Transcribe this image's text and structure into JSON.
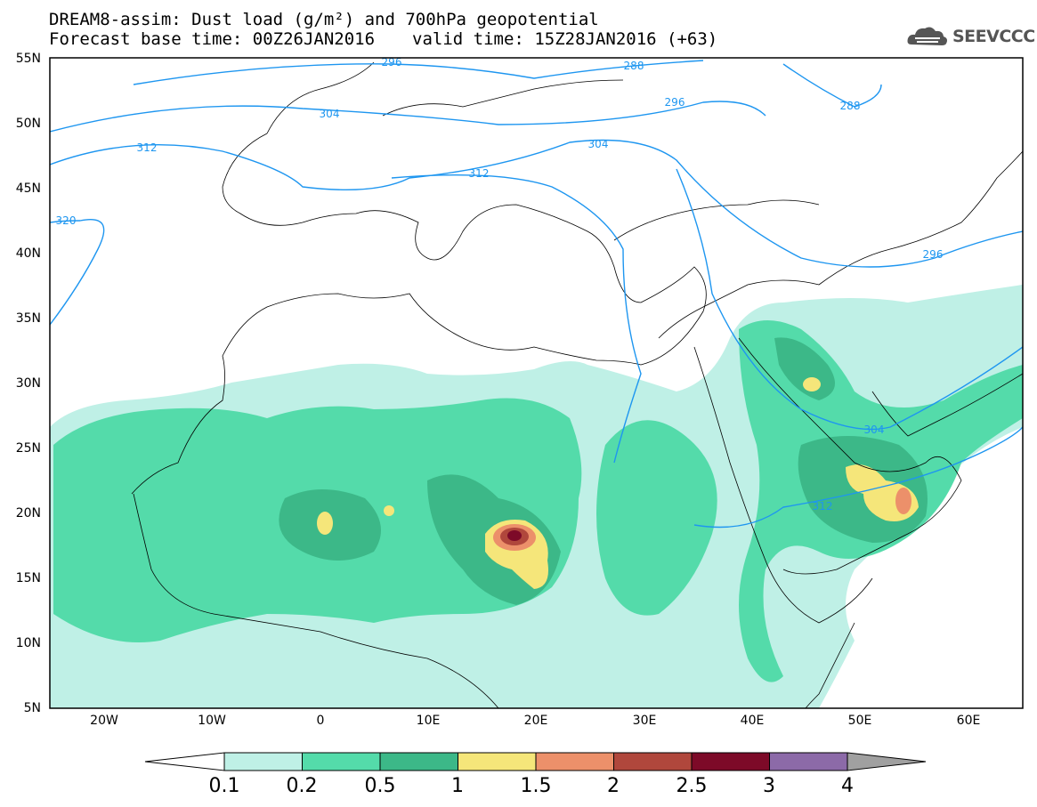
{
  "title": {
    "line1": "DREAM8-assim: Dust load (g/m²) and 700hPa geopotential",
    "base": "Forecast base time: 00Z26JAN2016",
    "valid": "valid time: 15Z28JAN2016 (+63)"
  },
  "logo": {
    "text": "SEEVCCC",
    "icon": "cloud-logo-icon"
  },
  "map_data": {
    "lat_ticks": [
      "55N",
      "50N",
      "45N",
      "40N",
      "35N",
      "30N",
      "25N",
      "20N",
      "15N",
      "10N",
      "5N"
    ],
    "lon_ticks": [
      "20W",
      "10W",
      "0",
      "10E",
      "20E",
      "30E",
      "40E",
      "50E",
      "60E"
    ],
    "contour_labels": [
      "296",
      "288",
      "296",
      "288",
      "304",
      "304",
      "312",
      "312",
      "320",
      "296",
      "304",
      "312"
    ]
  },
  "colorbar": {
    "colors": [
      "#bff0e6",
      "#54dbaa",
      "#3cb888",
      "#f5e67a",
      "#ec906a",
      "#b0473c",
      "#7d0a28",
      "#8c6aa8",
      "#a0a0a0"
    ],
    "labels": [
      "0.1",
      "0.2",
      "0.5",
      "1",
      "1.5",
      "2",
      "2.5",
      "3",
      "4"
    ]
  }
}
